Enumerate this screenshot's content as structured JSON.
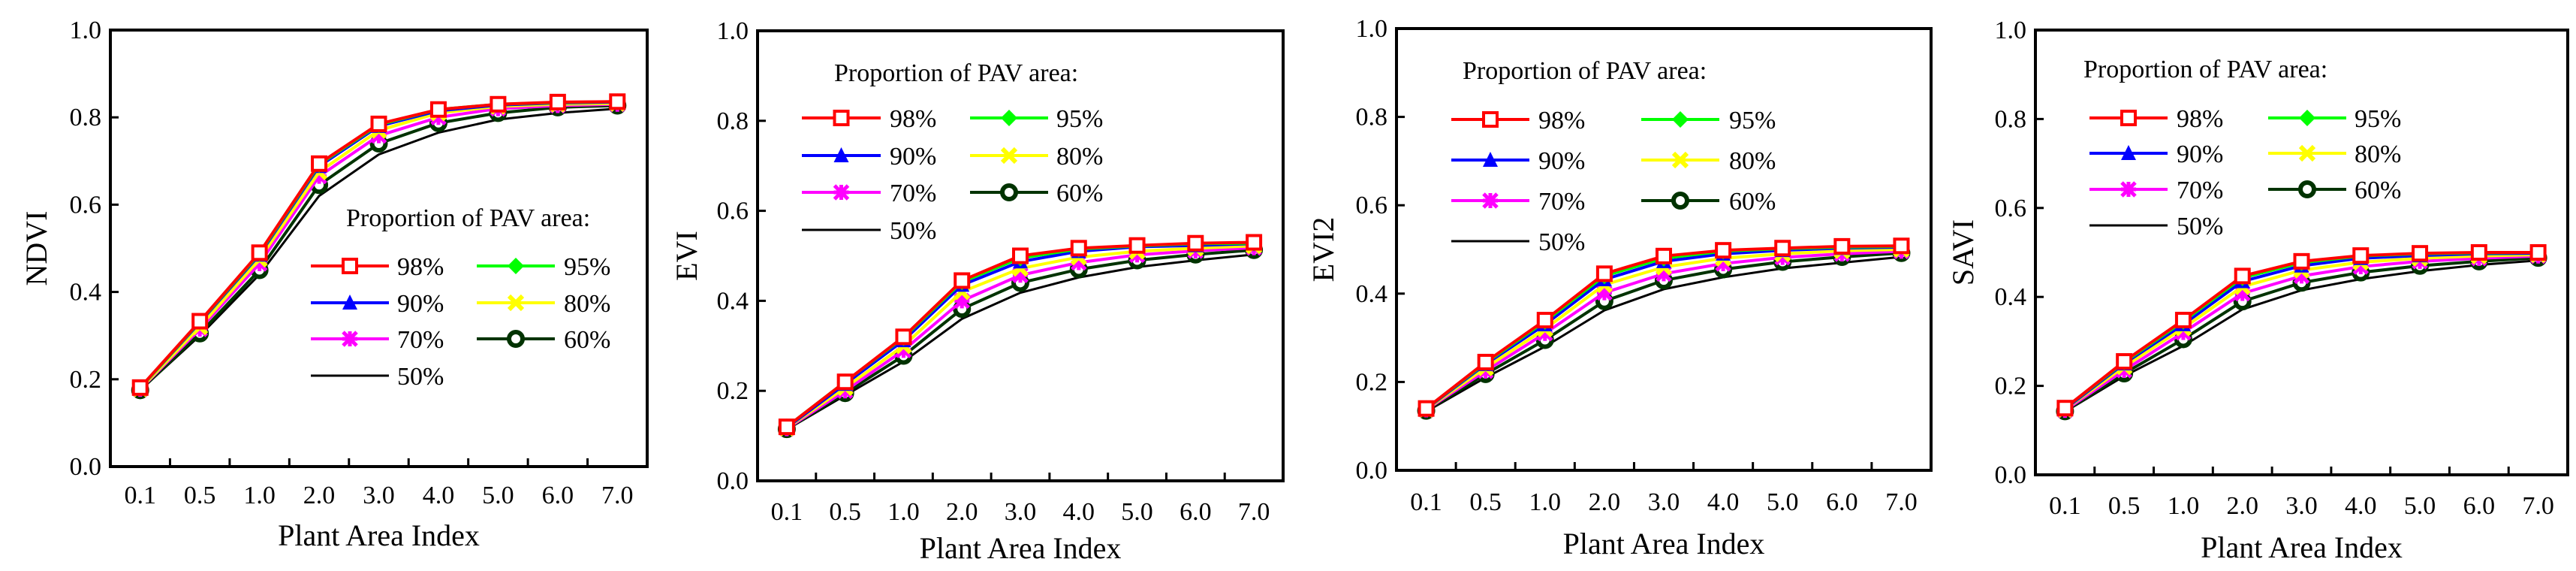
{
  "legend_title": "Proportion of PAV area:",
  "series_style": [
    {
      "name": "98%",
      "color": "#ff0000",
      "marker": "square-open"
    },
    {
      "name": "95%",
      "color": "#00ff00",
      "marker": "diamond"
    },
    {
      "name": "90%",
      "color": "#0000ff",
      "marker": "triangle"
    },
    {
      "name": "80%",
      "color": "#ffff00",
      "marker": "cross"
    },
    {
      "name": "70%",
      "color": "#ff00ff",
      "marker": "star"
    },
    {
      "name": "60%",
      "color": "#003300",
      "marker": "circle"
    },
    {
      "name": "50%",
      "color": "#000000",
      "marker": "none"
    }
  ],
  "chart_data": [
    {
      "type": "line",
      "title": "",
      "xlabel": "Plant Area Index",
      "ylabel": "NDVI",
      "categories": [
        "0.1",
        "0.5",
        "1.0",
        "2.0",
        "3.0",
        "4.0",
        "5.0",
        "6.0",
        "7.0"
      ],
      "yticks": [
        "0.0",
        "0.2",
        "0.4",
        "0.6",
        "0.8",
        "1.0"
      ],
      "ylim": [
        0,
        1
      ],
      "grid": false,
      "legend_position": "center-right",
      "series": [
        {
          "name": "98%",
          "values": [
            0.181,
            0.333,
            0.49,
            0.694,
            0.785,
            0.818,
            0.83,
            0.835,
            0.836
          ]
        },
        {
          "name": "95%",
          "values": [
            0.18,
            0.332,
            0.488,
            0.692,
            0.783,
            0.818,
            0.83,
            0.834,
            0.836
          ]
        },
        {
          "name": "90%",
          "values": [
            0.18,
            0.33,
            0.485,
            0.688,
            0.78,
            0.815,
            0.828,
            0.833,
            0.835
          ]
        },
        {
          "name": "80%",
          "values": [
            0.178,
            0.32,
            0.475,
            0.675,
            0.77,
            0.81,
            0.825,
            0.83,
            0.832
          ]
        },
        {
          "name": "70%",
          "values": [
            0.177,
            0.315,
            0.465,
            0.665,
            0.758,
            0.8,
            0.82,
            0.827,
            0.83
          ]
        },
        {
          "name": "60%",
          "values": [
            0.175,
            0.305,
            0.45,
            0.645,
            0.74,
            0.787,
            0.81,
            0.823,
            0.827
          ]
        },
        {
          "name": "50%",
          "values": [
            0.175,
            0.3,
            0.44,
            0.62,
            0.715,
            0.765,
            0.795,
            0.81,
            0.82
          ]
        }
      ]
    },
    {
      "type": "line",
      "title": "",
      "xlabel": "Plant Area Index",
      "ylabel": "EVI",
      "categories": [
        "0.1",
        "0.5",
        "1.0",
        "2.0",
        "3.0",
        "4.0",
        "5.0",
        "6.0",
        "7.0"
      ],
      "yticks": [
        "0.0",
        "0.2",
        "0.4",
        "0.6",
        "0.8",
        "1.0"
      ],
      "ylim": [
        0,
        1
      ],
      "grid": false,
      "legend_position": "top-left",
      "series": [
        {
          "name": "98%",
          "values": [
            0.12,
            0.22,
            0.32,
            0.445,
            0.5,
            0.517,
            0.523,
            0.528,
            0.53
          ]
        },
        {
          "name": "95%",
          "values": [
            0.12,
            0.22,
            0.318,
            0.442,
            0.495,
            0.515,
            0.522,
            0.527,
            0.528
          ]
        },
        {
          "name": "90%",
          "values": [
            0.118,
            0.215,
            0.312,
            0.435,
            0.487,
            0.51,
            0.52,
            0.523,
            0.527
          ]
        },
        {
          "name": "80%",
          "values": [
            0.117,
            0.207,
            0.3,
            0.42,
            0.472,
            0.497,
            0.51,
            0.517,
            0.522
          ]
        },
        {
          "name": "70%",
          "values": [
            0.116,
            0.2,
            0.29,
            0.4,
            0.457,
            0.485,
            0.502,
            0.511,
            0.518
          ]
        },
        {
          "name": "60%",
          "values": [
            0.115,
            0.195,
            0.278,
            0.382,
            0.44,
            0.47,
            0.49,
            0.503,
            0.513
          ]
        },
        {
          "name": "50%",
          "values": [
            0.114,
            0.19,
            0.265,
            0.36,
            0.418,
            0.452,
            0.475,
            0.49,
            0.503
          ]
        }
      ]
    },
    {
      "type": "line",
      "title": "",
      "xlabel": "Plant Area Index",
      "ylabel": "EVI2",
      "categories": [
        "0.1",
        "0.5",
        "1.0",
        "2.0",
        "3.0",
        "4.0",
        "5.0",
        "6.0",
        "7.0"
      ],
      "yticks": [
        "0.0",
        "0.2",
        "0.4",
        "0.6",
        "0.8",
        "1.0"
      ],
      "ylim": [
        0,
        1
      ],
      "grid": false,
      "legend_position": "top-left",
      "series": [
        {
          "name": "98%",
          "values": [
            0.14,
            0.245,
            0.34,
            0.445,
            0.485,
            0.498,
            0.503,
            0.507,
            0.508
          ]
        },
        {
          "name": "95%",
          "values": [
            0.14,
            0.243,
            0.337,
            0.44,
            0.48,
            0.496,
            0.502,
            0.505,
            0.507
          ]
        },
        {
          "name": "90%",
          "values": [
            0.139,
            0.24,
            0.33,
            0.432,
            0.473,
            0.49,
            0.498,
            0.503,
            0.505
          ]
        },
        {
          "name": "80%",
          "values": [
            0.138,
            0.232,
            0.32,
            0.42,
            0.46,
            0.48,
            0.49,
            0.497,
            0.5
          ]
        },
        {
          "name": "70%",
          "values": [
            0.137,
            0.225,
            0.31,
            0.402,
            0.445,
            0.468,
            0.482,
            0.49,
            0.496
          ]
        },
        {
          "name": "60%",
          "values": [
            0.135,
            0.218,
            0.295,
            0.383,
            0.43,
            0.455,
            0.472,
            0.483,
            0.492
          ]
        },
        {
          "name": "50%",
          "values": [
            0.133,
            0.21,
            0.28,
            0.362,
            0.41,
            0.437,
            0.457,
            0.47,
            0.483
          ]
        }
      ]
    },
    {
      "type": "line",
      "title": "",
      "xlabel": "Plant Area Index",
      "ylabel": "SAVI",
      "categories": [
        "0.1",
        "0.5",
        "1.0",
        "2.0",
        "3.0",
        "4.0",
        "5.0",
        "6.0",
        "7.0"
      ],
      "yticks": [
        "0.0",
        "0.2",
        "0.4",
        "0.6",
        "0.8",
        "1.0"
      ],
      "ylim": [
        0,
        1
      ],
      "grid": false,
      "legend_position": "top-left",
      "series": [
        {
          "name": "98%",
          "values": [
            0.15,
            0.255,
            0.348,
            0.447,
            0.48,
            0.493,
            0.498,
            0.5,
            0.5
          ]
        },
        {
          "name": "95%",
          "values": [
            0.15,
            0.253,
            0.345,
            0.443,
            0.477,
            0.492,
            0.497,
            0.499,
            0.5
          ]
        },
        {
          "name": "90%",
          "values": [
            0.148,
            0.25,
            0.338,
            0.435,
            0.47,
            0.487,
            0.493,
            0.497,
            0.498
          ]
        },
        {
          "name": "80%",
          "values": [
            0.147,
            0.243,
            0.33,
            0.423,
            0.46,
            0.478,
            0.487,
            0.492,
            0.495
          ]
        },
        {
          "name": "70%",
          "values": [
            0.145,
            0.235,
            0.32,
            0.408,
            0.447,
            0.468,
            0.48,
            0.487,
            0.492
          ]
        },
        {
          "name": "60%",
          "values": [
            0.143,
            0.228,
            0.305,
            0.39,
            0.432,
            0.455,
            0.47,
            0.48,
            0.488
          ]
        },
        {
          "name": "50%",
          "values": [
            0.142,
            0.222,
            0.29,
            0.372,
            0.415,
            0.44,
            0.458,
            0.472,
            0.482
          ]
        }
      ]
    }
  ]
}
